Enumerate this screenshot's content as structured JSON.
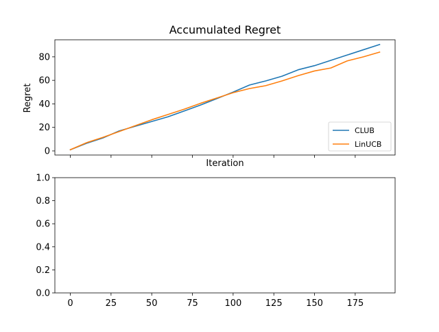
{
  "chart_data": [
    {
      "type": "line",
      "title": "Accumulated Regret",
      "xlabel": "Iteration",
      "ylabel": "Regret",
      "xlim": [
        -9.5,
        199.5
      ],
      "ylim": [
        -3.5,
        94.5
      ],
      "yticks": [
        0,
        20,
        40,
        60,
        80
      ],
      "xticks": [
        0,
        25,
        50,
        75,
        100,
        125,
        150,
        175
      ],
      "x_tick_labels_visible": false,
      "grid": false,
      "legend": "lower-right",
      "x": [
        0,
        10,
        20,
        30,
        40,
        50,
        60,
        70,
        80,
        90,
        100,
        110,
        120,
        130,
        140,
        150,
        160,
        170,
        180,
        190
      ],
      "series": [
        {
          "name": "CLUB",
          "color": "#1f77b4",
          "values": [
            1,
            6.5,
            11,
            17,
            21,
            25,
            29,
            34,
            39,
            44.5,
            50,
            56,
            59.5,
            63.5,
            69,
            72.5,
            77,
            81.5,
            86,
            90.5
          ]
        },
        {
          "name": "LinUCB",
          "color": "#ff7f0e",
          "values": [
            1,
            7,
            11.5,
            16.5,
            21.5,
            26.5,
            31,
            35.5,
            40.5,
            45,
            49.5,
            53,
            55.5,
            59.5,
            64,
            68,
            70.5,
            76.5,
            80,
            84
          ]
        }
      ]
    },
    {
      "type": "line",
      "title": "",
      "xlabel": "",
      "ylabel": "",
      "xlim": [
        -9.5,
        199.5
      ],
      "ylim": [
        0,
        1
      ],
      "yticks": [
        0.0,
        0.2,
        0.4,
        0.6,
        0.8,
        1.0
      ],
      "ytick_labels": [
        "0.0",
        "0.2",
        "0.4",
        "0.6",
        "0.8",
        "1.0"
      ],
      "xticks": [
        0,
        25,
        50,
        75,
        100,
        125,
        150,
        175
      ],
      "xtick_labels": [
        "0",
        "25",
        "50",
        "75",
        "100",
        "125",
        "150",
        "175"
      ],
      "grid": false,
      "series": []
    }
  ]
}
